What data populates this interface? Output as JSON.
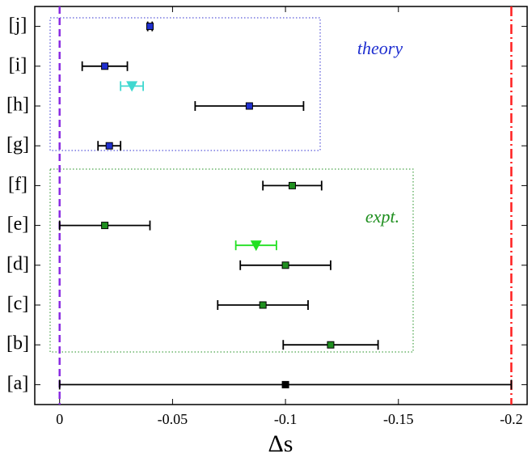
{
  "chart_data": {
    "type": "errorbar",
    "xlabel": "Δs",
    "xlim": [
      0.011,
      -0.207
    ],
    "xticks": [
      0,
      -0.05,
      -0.1,
      -0.15,
      -0.2
    ],
    "ylim": [
      0.5,
      10.5
    ],
    "yticks": [
      {
        "value": 1,
        "label": "[a]"
      },
      {
        "value": 2,
        "label": "[b]"
      },
      {
        "value": 3,
        "label": "[c]"
      },
      {
        "value": 4,
        "label": "[d]"
      },
      {
        "value": 5,
        "label": "[e]"
      },
      {
        "value": 6,
        "label": "[f]"
      },
      {
        "value": 7,
        "label": "[g]"
      },
      {
        "value": 8,
        "label": "[h]"
      },
      {
        "value": 9,
        "label": "[i]"
      },
      {
        "value": 10,
        "label": "[j]"
      }
    ],
    "series": [
      {
        "color": "#1f2fd0",
        "marker": "square",
        "errcolor": "#000000",
        "x": [
          -0.04,
          -0.02,
          -0.084,
          -0.022
        ],
        "y": [
          10,
          9,
          8,
          7
        ],
        "err": [
          0.001,
          0.01,
          0.024,
          0.005
        ]
      },
      {
        "color": "#40d8d0",
        "marker": "triangle",
        "errcolor": "#40d8d0",
        "x": [
          -0.032
        ],
        "y": [
          8.5
        ],
        "err": [
          0.005
        ]
      },
      {
        "color": "#1f8f1f",
        "marker": "square",
        "errcolor": "#000000",
        "x": [
          -0.103,
          -0.02,
          -0.1,
          -0.09,
          -0.12
        ],
        "y": [
          6,
          5,
          4,
          3,
          2
        ],
        "err": [
          0.013,
          0.02,
          0.02,
          0.02,
          0.021
        ]
      },
      {
        "color": "#22e022",
        "marker": "triangle",
        "errcolor": "#22e022",
        "x": [
          -0.087
        ],
        "y": [
          4.5
        ],
        "err": [
          0.009
        ]
      },
      {
        "color": "#000000",
        "marker": "square",
        "errcolor": "#000000",
        "x": [
          -0.1
        ],
        "y": [
          1
        ],
        "err": [
          0.1
        ]
      }
    ],
    "vlines": [
      {
        "x": 0,
        "color": "#8a2be2",
        "style": "dashed"
      },
      {
        "x": -0.2,
        "color": "#ff2020",
        "style": "dashdot"
      }
    ],
    "annotations": [
      {
        "text": "theory",
        "color": "#1f2fd0"
      },
      {
        "text": "expt.",
        "color": "#1f8f1f"
      }
    ]
  }
}
